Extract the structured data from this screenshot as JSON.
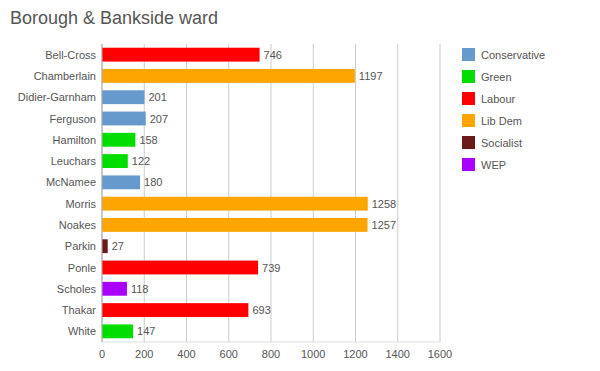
{
  "chart_data": {
    "type": "bar",
    "orientation": "horizontal",
    "stacked": true,
    "title": "Borough & Bankside ward",
    "categories": [
      "Bell-Cross",
      "Chamberlain",
      "Didier-Garnham",
      "Ferguson",
      "Hamilton",
      "Leuchars",
      "McNamee",
      "Morris",
      "Noakes",
      "Parkin",
      "Ponle",
      "Scholes",
      "Thakar",
      "White"
    ],
    "series": [
      {
        "name": "Conservative",
        "color": "#6699CC",
        "values": [
          null,
          null,
          201,
          207,
          null,
          null,
          180,
          null,
          null,
          null,
          null,
          null,
          null,
          null
        ]
      },
      {
        "name": "Green",
        "color": "#00DD00",
        "values": [
          null,
          null,
          null,
          null,
          158,
          122,
          null,
          null,
          null,
          null,
          null,
          null,
          null,
          147
        ]
      },
      {
        "name": "Labour",
        "color": "#FF0000",
        "values": [
          746,
          null,
          null,
          null,
          null,
          null,
          null,
          null,
          null,
          null,
          739,
          null,
          693,
          null
        ]
      },
      {
        "name": "Lib Dem",
        "color": "#FFA500",
        "values": [
          null,
          1197,
          null,
          null,
          null,
          null,
          null,
          1258,
          1257,
          null,
          null,
          null,
          null,
          null
        ]
      },
      {
        "name": "Socialist",
        "color": "#6B1A1A",
        "values": [
          null,
          null,
          null,
          null,
          null,
          null,
          null,
          null,
          null,
          27,
          null,
          null,
          null,
          null
        ]
      },
      {
        "name": "WEP",
        "color": "#AA00FF",
        "values": [
          null,
          null,
          null,
          null,
          null,
          null,
          null,
          null,
          null,
          null,
          null,
          118,
          null,
          null
        ]
      }
    ],
    "xlim": [
      0,
      1600
    ],
    "xticks": [
      0,
      200,
      400,
      600,
      800,
      1000,
      1200,
      1400,
      1600
    ],
    "grid": true,
    "legend": "right",
    "data_labels": true
  }
}
